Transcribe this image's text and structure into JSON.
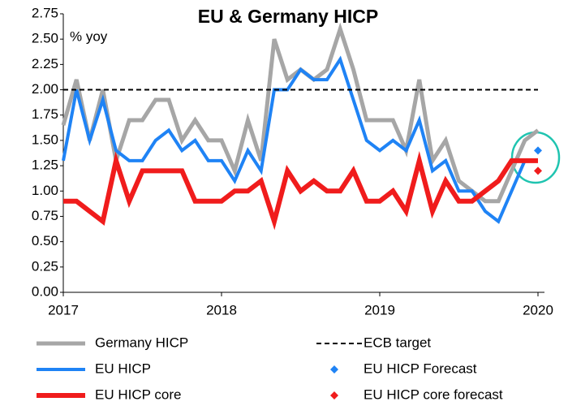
{
  "chart_data": {
    "type": "line",
    "title": "EU & Germany HICP",
    "annotation": "% yoy",
    "categories": [
      "2017",
      null,
      null,
      null,
      null,
      null,
      null,
      null,
      null,
      null,
      null,
      null,
      "2018",
      null,
      null,
      null,
      null,
      null,
      null,
      null,
      null,
      null,
      null,
      null,
      "2019",
      null,
      null,
      null,
      null,
      null,
      null,
      null,
      null,
      null,
      null,
      null,
      "2020"
    ],
    "ylim": [
      0,
      2.75
    ],
    "yticks": [
      {
        "value": 0,
        "label": "0.00"
      },
      {
        "value": 0.25,
        "label": "0.25"
      },
      {
        "value": 0.5,
        "label": "0.50"
      },
      {
        "value": 0.75,
        "label": "0.75"
      },
      {
        "value": 1,
        "label": "1.00"
      },
      {
        "value": 1.25,
        "label": "1.25"
      },
      {
        "value": 1.5,
        "label": "1.50"
      },
      {
        "value": 1.75,
        "label": "1.75"
      },
      {
        "value": 2,
        "label": "2.00"
      },
      {
        "value": 2.25,
        "label": "2.25"
      },
      {
        "value": 2.5,
        "label": "2.50"
      },
      {
        "value": 2.75,
        "label": "2.75"
      }
    ],
    "series": [
      {
        "name": "Germany HICP",
        "color": "#a6a6a6",
        "width": 5,
        "values": [
          1.65,
          2.1,
          1.5,
          2.0,
          1.3,
          1.7,
          1.7,
          1.9,
          1.9,
          1.5,
          1.7,
          1.5,
          1.5,
          1.2,
          1.7,
          1.3,
          2.5,
          2.1,
          2.2,
          2.1,
          2.2,
          2.6,
          2.2,
          1.7,
          1.7,
          1.7,
          1.4,
          2.1,
          1.3,
          1.5,
          1.1,
          1.0,
          0.9,
          0.9,
          1.2,
          1.5,
          1.6
        ]
      },
      {
        "name": "EU HICP",
        "color": "#1f83f5",
        "width": 4,
        "values": [
          1.3,
          2.0,
          1.5,
          1.9,
          1.4,
          1.3,
          1.3,
          1.5,
          1.6,
          1.4,
          1.5,
          1.3,
          1.3,
          1.1,
          1.4,
          1.2,
          2.0,
          2.0,
          2.2,
          2.1,
          2.1,
          2.3,
          1.9,
          1.5,
          1.4,
          1.5,
          1.4,
          1.7,
          1.2,
          1.3,
          1.0,
          1.0,
          0.8,
          0.7,
          1.0,
          1.3,
          null
        ]
      },
      {
        "name": "EU HICP core",
        "color": "#f01c1c",
        "width": 6,
        "values": [
          0.9,
          0.9,
          0.8,
          0.7,
          1.3,
          0.9,
          1.2,
          1.2,
          1.2,
          1.2,
          0.9,
          0.9,
          0.9,
          1.0,
          1.0,
          1.1,
          0.7,
          1.2,
          1.0,
          1.1,
          1.0,
          1.0,
          1.2,
          0.9,
          0.9,
          1.0,
          0.8,
          1.3,
          0.8,
          1.1,
          0.9,
          0.9,
          1.0,
          1.1,
          1.3,
          1.3,
          1.3
        ]
      },
      {
        "name": "ECB target",
        "color": "#000000",
        "width": 2,
        "dash": true,
        "values": [
          2,
          2,
          2,
          2,
          2,
          2,
          2,
          2,
          2,
          2,
          2,
          2,
          2,
          2,
          2,
          2,
          2,
          2,
          2,
          2,
          2,
          2,
          2,
          2,
          2,
          2,
          2,
          2,
          2,
          2,
          2,
          2,
          2,
          2,
          2,
          2,
          2
        ]
      },
      {
        "name": "EU HICP Forecast",
        "color": "#1f83f5",
        "marker": "diamond",
        "values": [
          null,
          null,
          null,
          null,
          null,
          null,
          null,
          null,
          null,
          null,
          null,
          null,
          null,
          null,
          null,
          null,
          null,
          null,
          null,
          null,
          null,
          null,
          null,
          null,
          null,
          null,
          null,
          null,
          null,
          null,
          null,
          null,
          null,
          null,
          null,
          null,
          1.4
        ]
      },
      {
        "name": "EU HICP core forecast",
        "color": "#f01c1c",
        "marker": "diamond",
        "values": [
          null,
          null,
          null,
          null,
          null,
          null,
          null,
          null,
          null,
          null,
          null,
          null,
          null,
          null,
          null,
          null,
          null,
          null,
          null,
          null,
          null,
          null,
          null,
          null,
          null,
          null,
          null,
          null,
          null,
          null,
          null,
          null,
          null,
          null,
          null,
          null,
          1.2
        ]
      }
    ]
  }
}
